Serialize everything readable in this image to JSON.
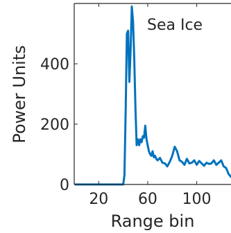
{
  "chart_data": {
    "type": "line",
    "title": "",
    "annotation": "Sea Ice",
    "xlabel": "Range bin",
    "ylabel": "Power Units",
    "xlim": [
      0,
      128
    ],
    "ylim": [
      0,
      600
    ],
    "xticks": [
      20,
      60,
      100
    ],
    "yticks": [
      0,
      200,
      400
    ],
    "grid": false,
    "line_color": "#0072BD",
    "series": [
      {
        "x": [
          1,
          10,
          20,
          30,
          38,
          40,
          41,
          42,
          43,
          44,
          45,
          46,
          47,
          48,
          49,
          50,
          51,
          52,
          53,
          54,
          55,
          56,
          57,
          58,
          59,
          60,
          61,
          62,
          63,
          64,
          65,
          66,
          67,
          68,
          70,
          72,
          74,
          76,
          78,
          80,
          82,
          84,
          86,
          88,
          90,
          92,
          94,
          96,
          98,
          100,
          102,
          104,
          106,
          108,
          110,
          112,
          114,
          116,
          118,
          120,
          122,
          124,
          126,
          128
        ],
        "values": [
          0,
          0,
          0,
          0,
          0,
          0,
          30,
          250,
          500,
          510,
          340,
          440,
          590,
          540,
          420,
          250,
          130,
          150,
          130,
          150,
          140,
          160,
          155,
          195,
          150,
          130,
          110,
          100,
          95,
          110,
          90,
          95,
          85,
          80,
          88,
          72,
          70,
          60,
          75,
          95,
          125,
          110,
          80,
          75,
          65,
          85,
          70,
          72,
          80,
          65,
          78,
          70,
          62,
          72,
          68,
          70,
          80,
          65,
          72,
          80,
          60,
          55,
          35,
          25
        ]
      }
    ]
  }
}
